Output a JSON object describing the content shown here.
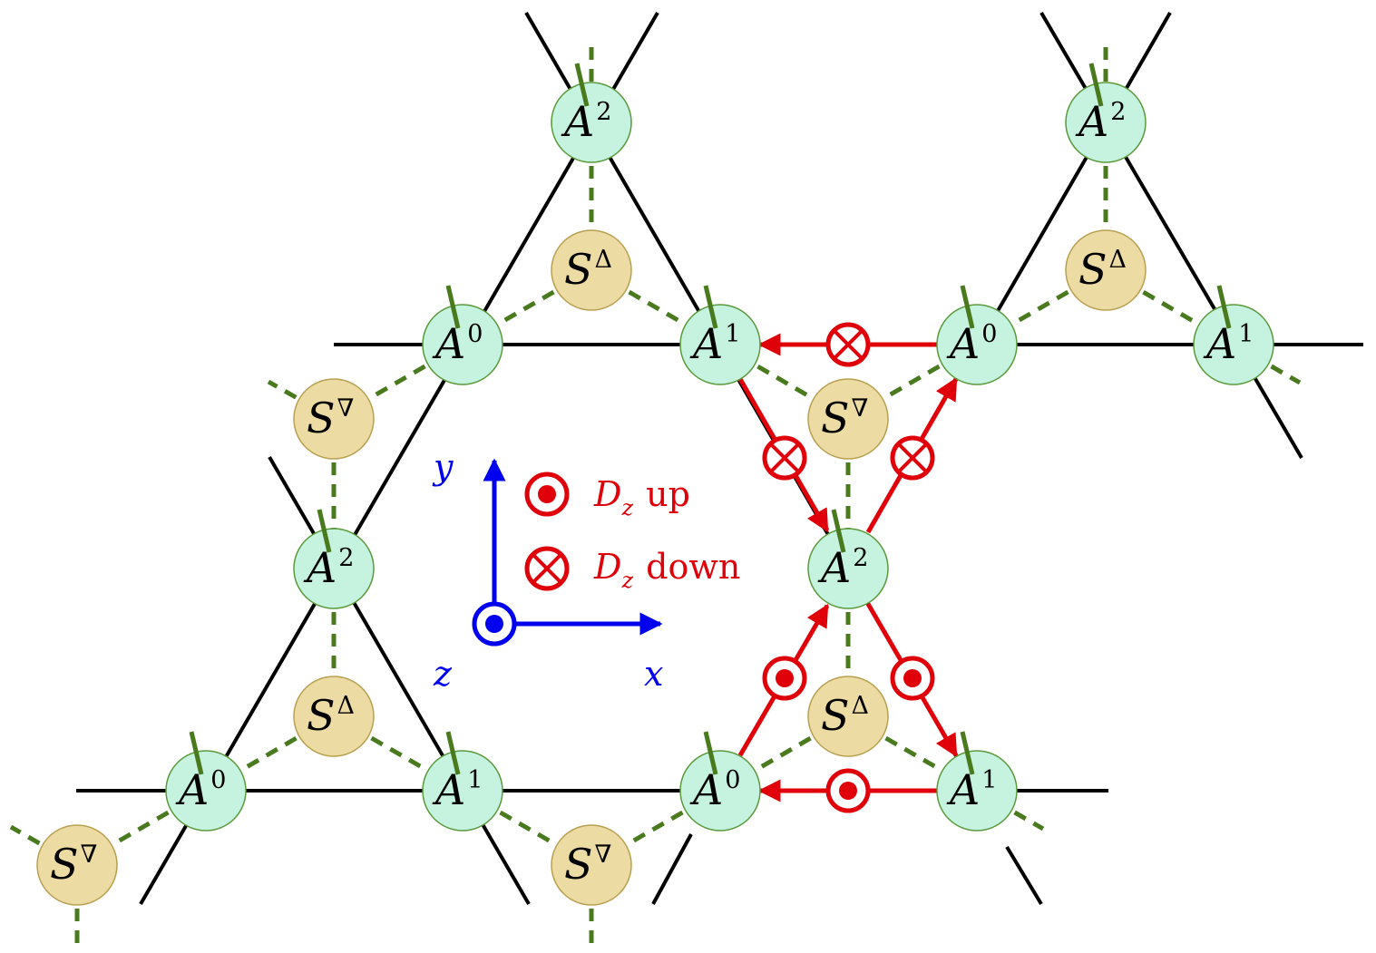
{
  "colors": {
    "bond": "#000000",
    "guide": "#4a7a1e",
    "a_fill": "#c6f2e0",
    "a_stroke": "#5a9a3a",
    "s_fill": "#ecdca4",
    "s_stroke": "#b8a050",
    "dm": "#e0000a",
    "axes": "#0000ee"
  },
  "labels": {
    "a_base": "A",
    "s_base": "S",
    "up_triangle": "Δ",
    "down_triangle": "∇",
    "sup0": "0",
    "sup1": "1",
    "sup2": "2"
  },
  "axes": {
    "x": "x",
    "y": "y",
    "z": "z"
  },
  "legend": {
    "d_symbol": "D",
    "d_sub": "z",
    "up_text": "up",
    "down_text": "down",
    "up_icon": "dot-circle-icon",
    "down_icon": "cross-circle-icon"
  }
}
